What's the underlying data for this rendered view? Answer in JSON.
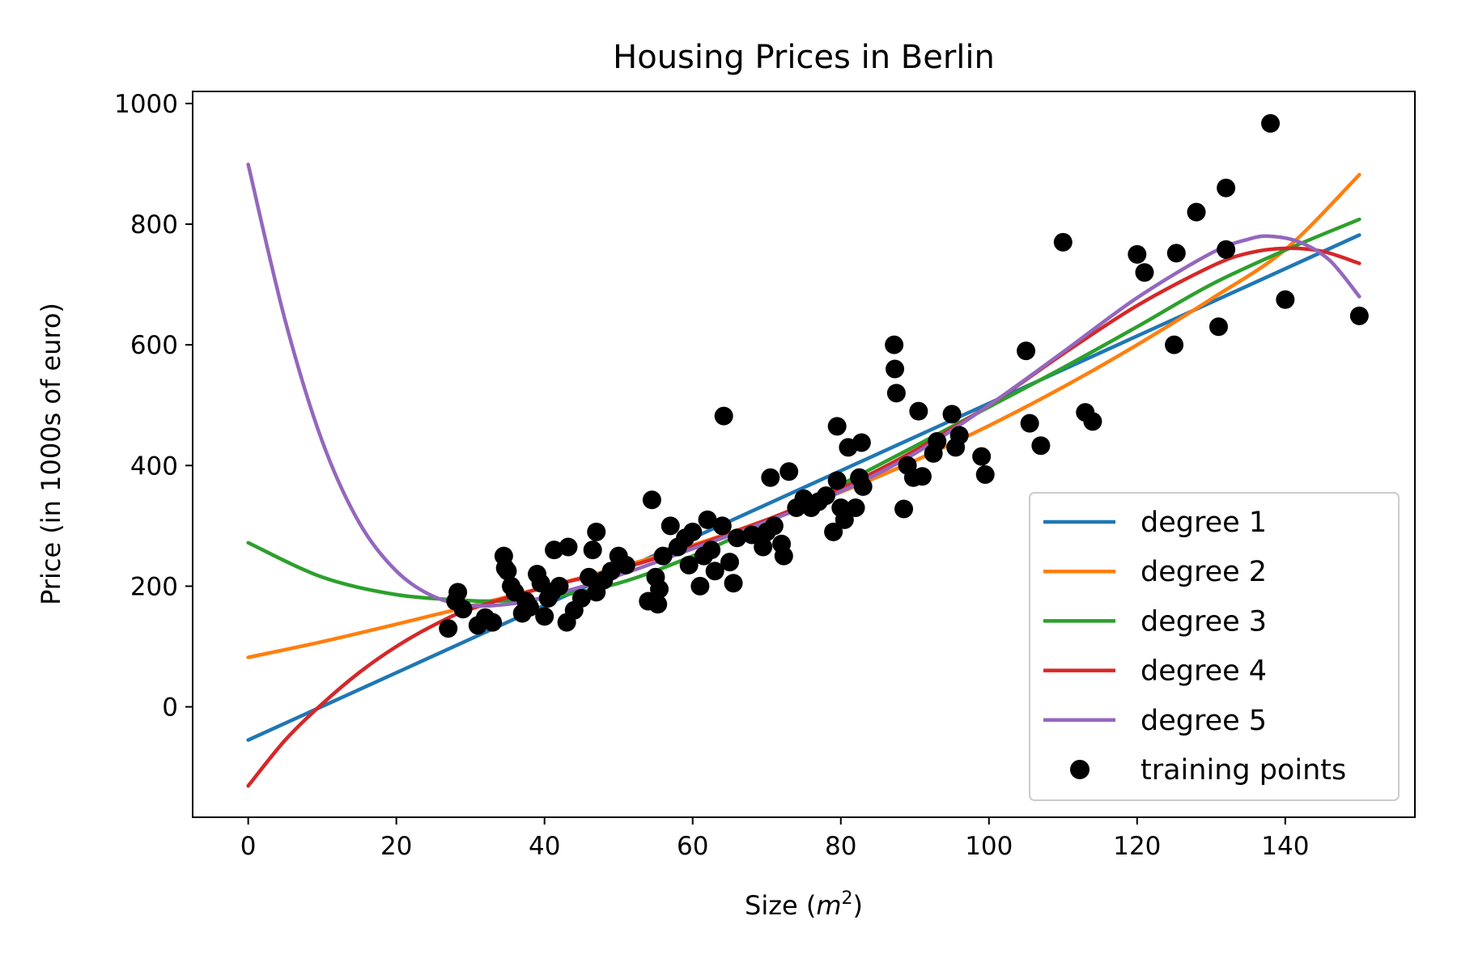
{
  "chart_data": {
    "type": "line",
    "title": "Housing Prices in Berlin",
    "xlabel": {
      "text": "Size (",
      "var": "m",
      "sup": "2",
      "tail": ")"
    },
    "ylabel": "Price (in 1000s of euro)",
    "xlim": [
      -7.5,
      157.5
    ],
    "ylim": [
      -183,
      1020
    ],
    "xticks": [
      0,
      20,
      40,
      60,
      80,
      100,
      120,
      140
    ],
    "yticks": [
      0,
      200,
      400,
      600,
      800,
      1000
    ],
    "grid": false,
    "legend_position": "lower right",
    "series": [
      {
        "name": "degree 1",
        "color": "#1f77b4",
        "x": [
          0,
          150
        ],
        "y": [
          -55,
          782
        ]
      },
      {
        "name": "degree 2",
        "color": "#ff7f0e",
        "x": [
          0,
          10,
          20,
          30,
          40,
          50,
          60,
          70,
          80,
          90,
          100,
          110,
          120,
          130,
          140,
          150
        ],
        "y": [
          82,
          108,
          137,
          167,
          198,
          231,
          268,
          310,
          356,
          408,
          466,
          530,
          600,
          676,
          758,
          882
        ]
      },
      {
        "name": "degree 3",
        "color": "#2ca02c",
        "x": [
          0,
          10,
          20,
          30,
          35,
          40,
          50,
          60,
          70,
          80,
          90,
          100,
          110,
          120,
          130,
          140,
          150
        ],
        "y": [
          272,
          215,
          186,
          176,
          176,
          180,
          205,
          250,
          306,
          368,
          432,
          497,
          562,
          630,
          700,
          757,
          808
        ]
      },
      {
        "name": "degree 4",
        "color": "#d62728",
        "x": [
          0,
          5,
          10,
          15,
          20,
          25,
          30,
          40,
          50,
          60,
          70,
          80,
          90,
          100,
          110,
          120,
          130,
          135,
          140,
          145,
          150
        ],
        "y": [
          -131,
          -55,
          5,
          57,
          100,
          135,
          162,
          198,
          228,
          266,
          310,
          362,
          425,
          500,
          585,
          665,
          730,
          752,
          760,
          755,
          735
        ]
      },
      {
        "name": "degree 5",
        "color": "#9467bd",
        "x": [
          0,
          5,
          10,
          15,
          20,
          25,
          30,
          35,
          40,
          50,
          60,
          70,
          80,
          90,
          100,
          110,
          120,
          130,
          135,
          138,
          142,
          146,
          150
        ],
        "y": [
          899,
          640,
          440,
          305,
          225,
          183,
          168,
          170,
          182,
          218,
          262,
          307,
          357,
          420,
          500,
          588,
          678,
          752,
          775,
          780,
          770,
          740,
          680
        ]
      }
    ],
    "scatter": {
      "name": "training points",
      "color": "#000000",
      "points": [
        [
          27,
          130
        ],
        [
          28,
          175
        ],
        [
          28.3,
          190
        ],
        [
          29,
          162
        ],
        [
          31,
          135
        ],
        [
          32,
          148
        ],
        [
          33,
          140
        ],
        [
          34.5,
          250
        ],
        [
          34.7,
          230
        ],
        [
          35,
          225
        ],
        [
          35.5,
          200
        ],
        [
          36,
          190
        ],
        [
          37,
          155
        ],
        [
          37.5,
          175
        ],
        [
          38,
          165
        ],
        [
          39,
          220
        ],
        [
          39.5,
          205
        ],
        [
          40,
          150
        ],
        [
          40.5,
          180
        ],
        [
          41,
          190
        ],
        [
          41.3,
          260
        ],
        [
          42,
          200
        ],
        [
          43,
          140
        ],
        [
          43.2,
          265
        ],
        [
          44,
          160
        ],
        [
          45,
          180
        ],
        [
          46,
          215
        ],
        [
          46.5,
          260
        ],
        [
          47,
          190
        ],
        [
          47,
          290
        ],
        [
          48,
          210
        ],
        [
          49,
          225
        ],
        [
          50,
          250
        ],
        [
          51,
          235
        ],
        [
          54,
          175
        ],
        [
          54.5,
          343
        ],
        [
          55,
          215
        ],
        [
          55.3,
          170
        ],
        [
          55.5,
          195
        ],
        [
          56,
          250
        ],
        [
          57,
          300
        ],
        [
          58,
          265
        ],
        [
          59,
          280
        ],
        [
          59.5,
          235
        ],
        [
          60,
          290
        ],
        [
          61,
          200
        ],
        [
          61.5,
          250
        ],
        [
          62,
          310
        ],
        [
          62.5,
          260
        ],
        [
          63,
          225
        ],
        [
          64,
          300
        ],
        [
          64.2,
          482
        ],
        [
          65,
          240
        ],
        [
          65.5,
          205
        ],
        [
          66,
          280
        ],
        [
          68,
          285
        ],
        [
          69.5,
          265
        ],
        [
          70,
          290
        ],
        [
          70.5,
          380
        ],
        [
          71,
          300
        ],
        [
          72,
          270
        ],
        [
          72.3,
          250
        ],
        [
          73,
          390
        ],
        [
          74,
          330
        ],
        [
          75,
          345
        ],
        [
          76,
          330
        ],
        [
          77,
          340
        ],
        [
          78,
          350
        ],
        [
          79,
          290
        ],
        [
          79.5,
          375
        ],
        [
          80,
          330
        ],
        [
          80.5,
          310
        ],
        [
          81,
          430
        ],
        [
          79.5,
          465
        ],
        [
          82,
          330
        ],
        [
          82.5,
          380
        ],
        [
          83,
          365
        ],
        [
          82.8,
          438
        ],
        [
          87.2,
          600
        ],
        [
          87.3,
          560
        ],
        [
          87.5,
          520
        ],
        [
          88.5,
          328
        ],
        [
          89,
          400
        ],
        [
          89.8,
          380
        ],
        [
          90.5,
          490
        ],
        [
          91,
          382
        ],
        [
          92.5,
          420
        ],
        [
          93,
          440
        ],
        [
          95,
          485
        ],
        [
          95.5,
          430
        ],
        [
          96,
          450
        ],
        [
          99,
          415
        ],
        [
          99.5,
          385
        ],
        [
          105,
          590
        ],
        [
          105.5,
          470
        ],
        [
          107,
          433
        ],
        [
          110,
          770
        ],
        [
          113,
          488
        ],
        [
          114,
          473
        ],
        [
          120,
          750
        ],
        [
          121,
          720
        ],
        [
          125,
          600
        ],
        [
          125.3,
          752
        ],
        [
          128,
          820
        ],
        [
          131,
          630
        ],
        [
          132,
          758
        ],
        [
          132,
          860
        ],
        [
          138,
          967
        ],
        [
          140,
          675
        ],
        [
          150,
          648
        ]
      ]
    }
  }
}
